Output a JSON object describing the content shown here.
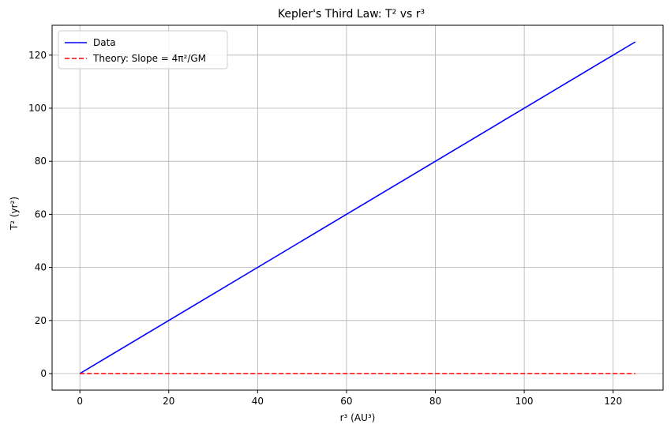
{
  "chart_data": {
    "type": "line",
    "title": "Kepler's Third Law: T² vs r³",
    "xlabel": "r³ (AU³)",
    "ylabel": "T² (yr²)",
    "xlim": [
      -6.25,
      131.25
    ],
    "ylim": [
      -6.25,
      131.25
    ],
    "xticks": [
      0,
      20,
      40,
      60,
      80,
      100,
      120
    ],
    "yticks": [
      0,
      20,
      40,
      60,
      80,
      100,
      120
    ],
    "grid": true,
    "legend_position": "top-left",
    "series": [
      {
        "name": "Data",
        "color": "#0000ff",
        "style": "solid",
        "x": [
          0,
          125
        ],
        "y": [
          0,
          125
        ]
      },
      {
        "name": "Theory: Slope = 4π²/GM",
        "color": "#ff0000",
        "style": "dashed",
        "x": [
          0,
          125
        ],
        "y": [
          0,
          0
        ]
      }
    ]
  }
}
